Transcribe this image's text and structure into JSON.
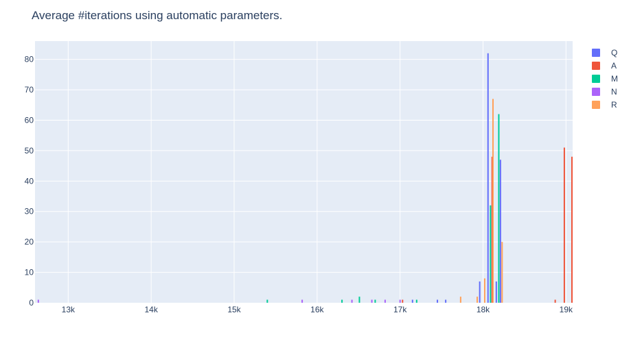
{
  "chart_data": {
    "type": "bar",
    "title": "Average #iterations using automatic parameters.",
    "xlabel": "",
    "ylabel": "",
    "xlim": [
      12600,
      19080
    ],
    "ylim": [
      0,
      86
    ],
    "x_ticks": [
      {
        "value": 13000,
        "label": "13k"
      },
      {
        "value": 14000,
        "label": "14k"
      },
      {
        "value": 15000,
        "label": "15k"
      },
      {
        "value": 16000,
        "label": "16k"
      },
      {
        "value": 17000,
        "label": "17k"
      },
      {
        "value": 18000,
        "label": "18k"
      },
      {
        "value": 19000,
        "label": "19k"
      }
    ],
    "y_ticks": [
      {
        "value": 0,
        "label": "0"
      },
      {
        "value": 10,
        "label": "10"
      },
      {
        "value": 20,
        "label": "20"
      },
      {
        "value": 30,
        "label": "30"
      },
      {
        "value": 40,
        "label": "40"
      },
      {
        "value": 50,
        "label": "50"
      },
      {
        "value": 60,
        "label": "60"
      },
      {
        "value": 70,
        "label": "70"
      },
      {
        "value": 80,
        "label": "80"
      }
    ],
    "grid": true,
    "legend_position": "right",
    "series": [
      {
        "name": "Q",
        "color": "#636efa",
        "points": [
          [
            17150,
            1
          ],
          [
            17450,
            1
          ],
          [
            17550,
            1
          ],
          [
            17960,
            7
          ],
          [
            18060,
            82
          ],
          [
            18160,
            7
          ],
          [
            18210,
            47
          ]
        ]
      },
      {
        "name": "A",
        "color": "#ef553b",
        "points": [
          [
            17030,
            1
          ],
          [
            18110,
            48
          ],
          [
            18870,
            1
          ],
          [
            18980,
            51
          ],
          [
            19080,
            48
          ]
        ]
      },
      {
        "name": "M",
        "color": "#00cc96",
        "points": [
          [
            15400,
            1
          ],
          [
            16300,
            1
          ],
          [
            16510,
            2
          ],
          [
            16700,
            1
          ],
          [
            17200,
            1
          ],
          [
            18090,
            32
          ],
          [
            18190,
            62
          ]
        ]
      },
      {
        "name": "N",
        "color": "#ab63fa",
        "points": [
          [
            12640,
            1
          ],
          [
            15820,
            1
          ],
          [
            16420,
            1
          ],
          [
            16660,
            1
          ],
          [
            16820,
            1
          ],
          [
            17000,
            1
          ]
        ]
      },
      {
        "name": "R",
        "color": "#ffa15a",
        "points": [
          [
            17730,
            2
          ],
          [
            17930,
            2
          ],
          [
            18020,
            8
          ],
          [
            18120,
            67
          ],
          [
            18230,
            20
          ]
        ]
      }
    ]
  }
}
